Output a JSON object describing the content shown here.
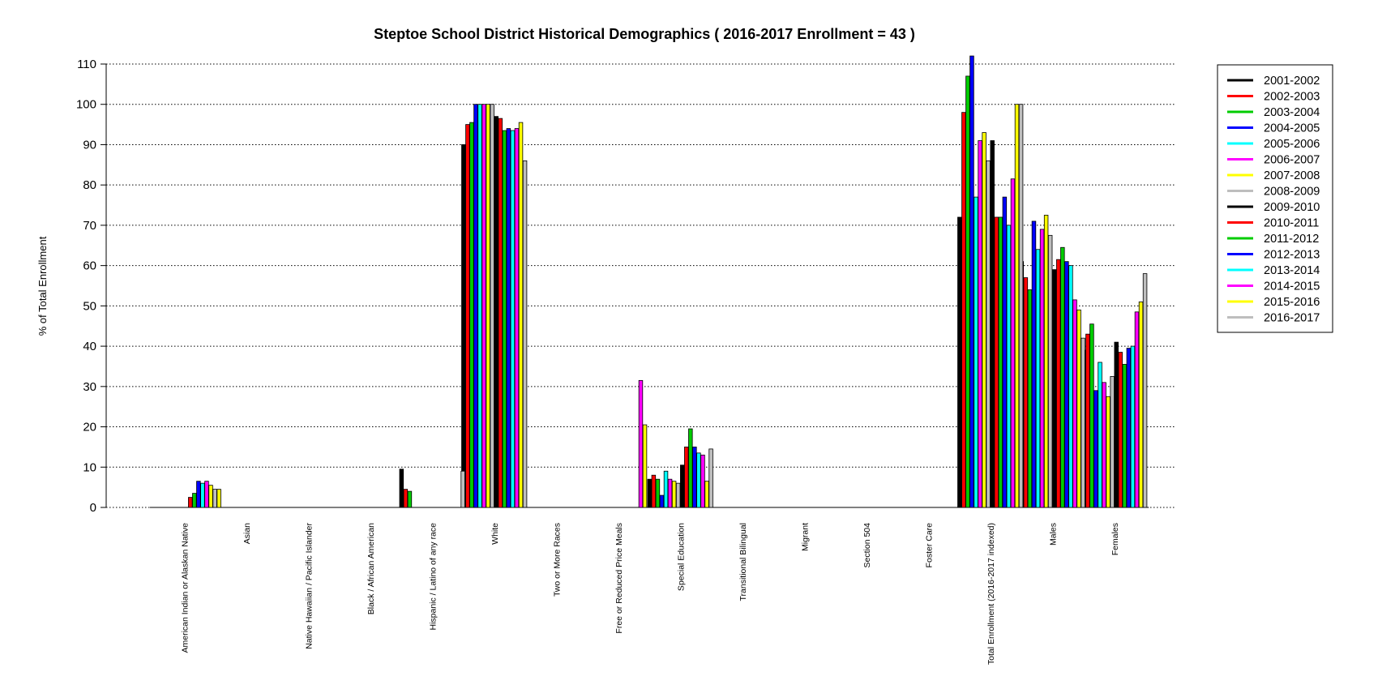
{
  "chart_data": {
    "type": "bar",
    "title": "Steptoe School District Historical Demographics  ( 2016-2017 Enrollment =  43 )",
    "ylabel": "% of Total Enrollment",
    "xlabel": "",
    "ylim": [
      0,
      110
    ],
    "yticks": [
      0,
      10,
      20,
      30,
      40,
      50,
      60,
      70,
      80,
      90,
      100,
      110
    ],
    "grid": "horizontal dotted",
    "legend_position": "right",
    "categories": [
      "American Indian or Alaskan Native",
      "Asian",
      "Native Hawaiian / Pacific Islander",
      "Black / African American",
      "Hispanic / Latino of any race",
      "White",
      "Two or More Races",
      "Free or Reduced Price Meals",
      "Special Education",
      "Transitional Bilingual",
      "Migrant",
      "Section 504",
      "Foster Care",
      "Total Enrollment (2016-2017 indexed)",
      "Males",
      "Females"
    ],
    "series": [
      {
        "name": "2001-2002",
        "color": "#000000",
        "values": [
          0,
          0,
          0,
          0,
          0,
          90,
          0,
          0,
          7,
          0,
          0,
          0,
          0,
          72,
          61,
          39
        ]
      },
      {
        "name": "2002-2003",
        "color": "#ff0000",
        "values": [
          0,
          0,
          0,
          0,
          0,
          95,
          0,
          0,
          8,
          0,
          0,
          0,
          0,
          98,
          57,
          43
        ]
      },
      {
        "name": "2003-2004",
        "color": "#00cc00",
        "values": [
          0,
          0,
          0,
          0,
          0,
          95.5,
          0,
          0,
          7,
          0,
          0,
          0,
          0,
          107,
          54,
          45.5
        ]
      },
      {
        "name": "2004-2005",
        "color": "#0000ff",
        "values": [
          0,
          0,
          0,
          0,
          0,
          100,
          0,
          0,
          3,
          0,
          0,
          0,
          0,
          112,
          71,
          29
        ]
      },
      {
        "name": "2005-2006",
        "color": "#00ffff",
        "values": [
          0,
          0,
          0,
          0,
          0,
          100,
          0,
          0,
          9,
          0,
          0,
          0,
          0,
          77,
          64,
          36
        ]
      },
      {
        "name": "2006-2007",
        "color": "#ff00ff",
        "values": [
          0,
          0,
          0,
          0,
          0,
          100,
          0,
          0,
          7,
          0,
          0,
          0,
          0,
          91,
          69,
          31
        ]
      },
      {
        "name": "2007-2008",
        "color": "#ffff00",
        "values": [
          0,
          0,
          0,
          0,
          0,
          100,
          0,
          0,
          6.5,
          0,
          0,
          0,
          0,
          93,
          72.5,
          27.5
        ]
      },
      {
        "name": "2008-2009",
        "color": "#bebebe",
        "values": [
          0,
          0,
          0,
          0,
          0,
          100,
          0,
          0,
          6,
          0,
          0,
          0,
          0,
          86,
          67.5,
          32.5
        ]
      },
      {
        "name": "2009-2010",
        "color": "#000000",
        "values": [
          0,
          0,
          0,
          0,
          0,
          97,
          0,
          0,
          10.5,
          0,
          0,
          0,
          0,
          91,
          59,
          41
        ]
      },
      {
        "name": "2010-2011",
        "color": "#ff0000",
        "values": [
          2.5,
          0,
          0,
          0,
          0,
          96.5,
          0,
          0,
          15,
          0,
          0,
          0,
          0,
          72,
          61.5,
          38.5
        ]
      },
      {
        "name": "2011-2012",
        "color": "#00cc00",
        "values": [
          3.5,
          0,
          0,
          0,
          0,
          93.5,
          0,
          0,
          19.5,
          0,
          0,
          0,
          0,
          72,
          64.5,
          35.5
        ]
      },
      {
        "name": "2012-2013",
        "color": "#0000ff",
        "values": [
          6.5,
          0,
          0,
          0,
          0,
          94,
          0,
          0,
          15,
          0,
          0,
          0,
          0,
          77,
          61,
          39.5
        ]
      },
      {
        "name": "2013-2014",
        "color": "#00ffff",
        "values": [
          6,
          0,
          0,
          0,
          0,
          93.5,
          0,
          0,
          13.5,
          0,
          0,
          0,
          0,
          70,
          60,
          40
        ]
      },
      {
        "name": "2014-2015",
        "color": "#ff00ff",
        "values": [
          6.5,
          0,
          0,
          0,
          0,
          94,
          0,
          31.5,
          13,
          0,
          0,
          0,
          0,
          81.5,
          51.5,
          48.5
        ]
      },
      {
        "name": "2015-2016",
        "color": "#ffff00",
        "values": [
          5.5,
          0,
          0,
          0,
          0,
          95.5,
          0,
          20.5,
          6.5,
          0,
          0,
          0,
          0,
          100,
          49,
          51
        ]
      },
      {
        "name": "2016-2017",
        "color": "#bebebe",
        "values": [
          4.5,
          0,
          0,
          0,
          9,
          86,
          0,
          0,
          14.5,
          0,
          0,
          0,
          0,
          100,
          42,
          58
        ]
      }
    ],
    "extra_bars": [
      {
        "category": 0,
        "series": 15,
        "offset": 1,
        "value": 4.5,
        "color": "#ffff00"
      },
      {
        "category": 4,
        "series": 0,
        "offset": 0,
        "value": 9.5,
        "color": "#000000"
      },
      {
        "category": 4,
        "series": 1,
        "offset": 0,
        "value": 4.5,
        "color": "#ff0000"
      },
      {
        "category": 4,
        "series": 2,
        "offset": 0,
        "value": 4,
        "color": "#00cc00"
      }
    ]
  }
}
